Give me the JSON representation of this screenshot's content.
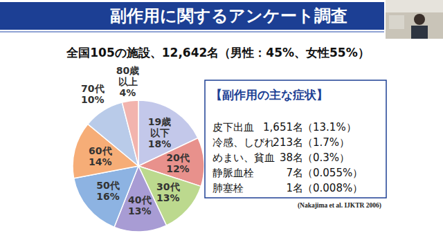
{
  "header": {
    "title": "副作用に関するアンケート調査"
  },
  "chart_data": {
    "type": "pie",
    "subtitle": "全国105の施設、12,642名（男性：45%、女性55%）",
    "categories": [
      "19歳\n以下",
      "20代",
      "30代",
      "40代",
      "50代",
      "60代",
      "70代",
      "80歳\n以上"
    ],
    "values": [
      18,
      12,
      13,
      13,
      16,
      14,
      10,
      4
    ],
    "value_labels": [
      "18%",
      "12%",
      "13%",
      "13%",
      "16%",
      "14%",
      "10%",
      "4%"
    ],
    "colors": [
      "#c3c8ea",
      "#e8918c",
      "#bcd98e",
      "#a89cd4",
      "#8db3e2",
      "#f6ad77",
      "#b9cbe9",
      "#f2b4ae"
    ],
    "data_labels": true
  },
  "symptoms": {
    "title": "【副作用の主な症状】",
    "rows": [
      {
        "name": "皮下出血",
        "count": "1,651名",
        "percent": "（13.1%）"
      },
      {
        "name": "冷感、しびれ",
        "count": "213名",
        "percent": "（1.7%）"
      },
      {
        "name": "めまい、貧血",
        "count": "38名",
        "percent": "（0.3%）"
      },
      {
        "name": "静脈血栓",
        "count": "7名",
        "percent": "（0.055%）"
      },
      {
        "name": "肺塞栓",
        "count": "1名",
        "percent": "（0.008%）"
      }
    ]
  },
  "citation": "(Nakajima et al.  IJKTR 2006)"
}
